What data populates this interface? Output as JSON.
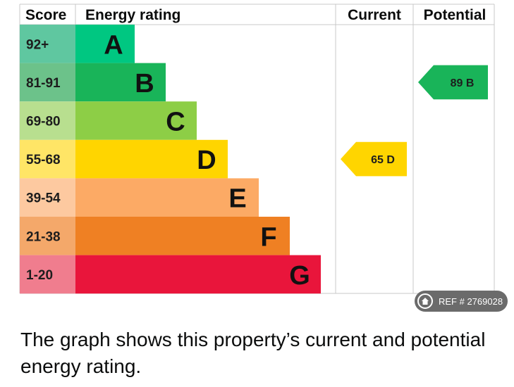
{
  "chart_data": {
    "type": "bar",
    "headers": {
      "score": "Score",
      "rating": "Energy rating",
      "current": "Current",
      "potential": "Potential"
    },
    "bands": [
      {
        "letter": "A",
        "range": "92+",
        "color": "#00c781",
        "score_color": "#5fc7a0"
      },
      {
        "letter": "B",
        "range": "81-91",
        "color": "#19b459",
        "score_color": "#6cc28a"
      },
      {
        "letter": "C",
        "range": "69-80",
        "color": "#8dce46",
        "score_color": "#b8df8f"
      },
      {
        "letter": "D",
        "range": "55-68",
        "color": "#ffd500",
        "score_color": "#ffe566"
      },
      {
        "letter": "E",
        "range": "39-54",
        "color": "#fcaa65",
        "score_color": "#fdc9a0"
      },
      {
        "letter": "F",
        "range": "21-38",
        "color": "#ef8023",
        "score_color": "#f4a86a"
      },
      {
        "letter": "G",
        "range": "1-20",
        "color": "#e9153b",
        "score_color": "#f07d8e"
      }
    ],
    "current": {
      "value": 65,
      "band": "D",
      "label": "65 D",
      "color": "#ffd500"
    },
    "potential": {
      "value": 89,
      "band": "B",
      "label": "89 B",
      "color": "#19b459"
    }
  },
  "ref_badge": {
    "icon": "house-icon",
    "text": "REF # 2769028"
  },
  "caption": "The graph shows this property’s current and potential energy rating."
}
